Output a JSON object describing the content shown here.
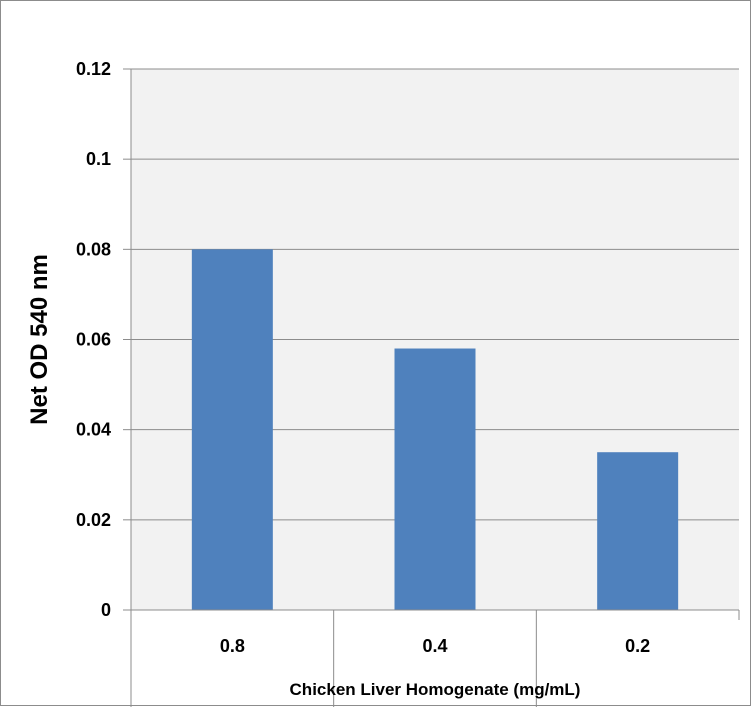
{
  "chart_data": {
    "type": "bar",
    "title": "",
    "xlabel": "Chicken Liver Homogenate (mg/mL)",
    "ylabel": "Net OD 540 nm",
    "categories": [
      "0.8",
      "0.4",
      "0.2"
    ],
    "values": [
      0.08,
      0.058,
      0.035
    ],
    "ylim": [
      0,
      0.12
    ],
    "yticks": [
      "0",
      "0.02",
      "0.04",
      "0.06",
      "0.08",
      "0.1",
      "0.12"
    ],
    "grid": true,
    "legend": "none",
    "colors": {
      "bar": "#4f81bd",
      "plot_background": "#f2f2f2",
      "gridline": "#8c8c8c"
    }
  }
}
